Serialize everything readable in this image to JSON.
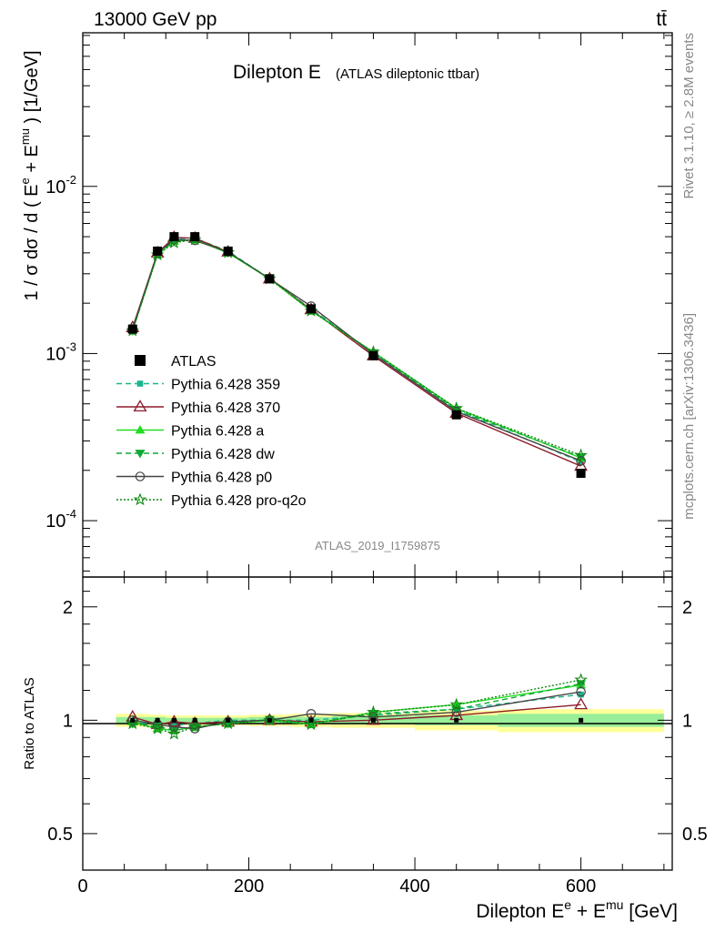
{
  "header": {
    "energy_label": "13000 GeV pp",
    "process_label": "tt̄",
    "title_main": "Dilepton E",
    "title_sub": "(ATLAS dileptonic ttbar)",
    "side_rivet": "Rivet 3.1.10, ≥ 2.8M events",
    "side_mcplots": "mcplots.cern.ch [arXiv:1306.3436]",
    "analysis_id": "ATLAS_2019_I1759875"
  },
  "axes": {
    "ylabel_main": "1 / σ dσ / d ( E^e + E^mu ) [1/GeV]",
    "ylabel_ratio": "Ratio to ATLAS",
    "xlabel": "Dilepton E^e + E^mu [GeV]",
    "x_ticks": [
      "0",
      "200",
      "400",
      "600"
    ],
    "y_main_ticks": [
      "10^-4",
      "10^-3",
      "10^-2"
    ],
    "y_ratio_ticks": [
      "0.5",
      "1",
      "2"
    ]
  },
  "legend": [
    {
      "label": "ATLAS",
      "color": "#000000",
      "marker": "square",
      "dash": "solid"
    },
    {
      "label": "Pythia 6.428 359",
      "color": "#1ab58c",
      "marker": "small-square",
      "dash": "dashed"
    },
    {
      "label": "Pythia 6.428 370",
      "color": "#8b1a2b",
      "marker": "open-triangle",
      "dash": "solid"
    },
    {
      "label": "Pythia 6.428 a",
      "color": "#22dd22",
      "marker": "triangle",
      "dash": "solid"
    },
    {
      "label": "Pythia 6.428 dw",
      "color": "#11aa33",
      "marker": "inverted-triangle",
      "dash": "dashed"
    },
    {
      "label": "Pythia 6.428 p0",
      "color": "#444444",
      "marker": "open-circle",
      "dash": "solid"
    },
    {
      "label": "Pythia 6.428 pro-q2o",
      "color": "#118811",
      "marker": "open-star",
      "dash": "dotted"
    }
  ],
  "chart_data": {
    "type": "line",
    "x_scale": "linear",
    "y_scale_main": "log",
    "y_scale_ratio": "log",
    "xlim": [
      0,
      710
    ],
    "ylim_main": [
      4.6e-05,
      0.083
    ],
    "ylim_ratio": [
      0.4,
      2.4
    ],
    "x": [
      60,
      90,
      110,
      135,
      175,
      225,
      275,
      350,
      450,
      600
    ],
    "bin_edges": [
      40,
      80,
      100,
      120,
      150,
      200,
      250,
      300,
      400,
      500,
      700
    ],
    "series": [
      {
        "name": "ATLAS",
        "values": [
          0.0014,
          0.0041,
          0.005,
          0.005,
          0.0041,
          0.0028,
          0.00185,
          0.00097,
          0.00043,
          0.000192
        ]
      },
      {
        "name": "Pythia 6.428 359",
        "values": [
          0.00138,
          0.00405,
          0.00485,
          0.0049,
          0.0041,
          0.0028,
          0.00185,
          0.001,
          0.00046,
          0.000225
        ]
      },
      {
        "name": "Pythia 6.428 370",
        "values": [
          0.00143,
          0.004,
          0.00495,
          0.0049,
          0.00405,
          0.0028,
          0.00183,
          0.00097,
          0.00044,
          0.000212
        ]
      },
      {
        "name": "Pythia 6.428 a",
        "values": [
          0.00139,
          0.0039,
          0.0047,
          0.0048,
          0.004,
          0.0028,
          0.0018,
          0.00102,
          0.00047,
          0.000237
        ]
      },
      {
        "name": "Pythia 6.428 dw",
        "values": [
          0.00137,
          0.00395,
          0.0047,
          0.0048,
          0.00402,
          0.00282,
          0.00181,
          0.00101,
          0.00046,
          0.00024
        ]
      },
      {
        "name": "Pythia 6.428 p0",
        "values": [
          0.0014,
          0.004,
          0.0048,
          0.00475,
          0.00405,
          0.0028,
          0.00192,
          0.00099,
          0.00045,
          0.000228
        ]
      },
      {
        "name": "Pythia 6.428 pro-q2o",
        "values": [
          0.00137,
          0.0039,
          0.0046,
          0.0048,
          0.00402,
          0.0028,
          0.0018,
          0.00102,
          0.00047,
          0.000246
        ]
      }
    ],
    "ratio": {
      "Pythia 6.428 359": [
        0.98,
        0.985,
        0.97,
        0.98,
        1.0,
        1.0,
        1.0,
        1.03,
        1.07,
        1.17
      ],
      "Pythia 6.428 370": [
        1.02,
        0.975,
        0.99,
        0.98,
        0.99,
        1.0,
        0.99,
        1.0,
        1.03,
        1.1
      ],
      "Pythia 6.428 a": [
        0.99,
        0.95,
        0.94,
        0.96,
        0.98,
        1.0,
        0.975,
        1.05,
        1.1,
        1.24
      ],
      "Pythia 6.428 dw": [
        0.98,
        0.965,
        0.94,
        0.96,
        0.98,
        1.005,
        0.98,
        1.04,
        1.07,
        1.25
      ],
      "Pythia 6.428 p0": [
        1.0,
        0.975,
        0.96,
        0.95,
        0.99,
        1.0,
        1.04,
        1.02,
        1.05,
        1.19
      ],
      "Pythia 6.428 pro-q2o": [
        0.98,
        0.95,
        0.92,
        0.96,
        0.98,
        1.0,
        0.975,
        1.05,
        1.1,
        1.28
      ]
    },
    "ratio_band_inner": [
      0.02,
      0.02,
      0.015,
      0.015,
      0.015,
      0.02,
      0.02,
      0.025,
      0.03,
      0.04
    ],
    "ratio_band_outer": [
      0.04,
      0.035,
      0.03,
      0.03,
      0.03,
      0.035,
      0.04,
      0.045,
      0.06,
      0.07
    ],
    "band_colors": {
      "inner": "#99ee99",
      "outer": "#ffff99"
    }
  }
}
